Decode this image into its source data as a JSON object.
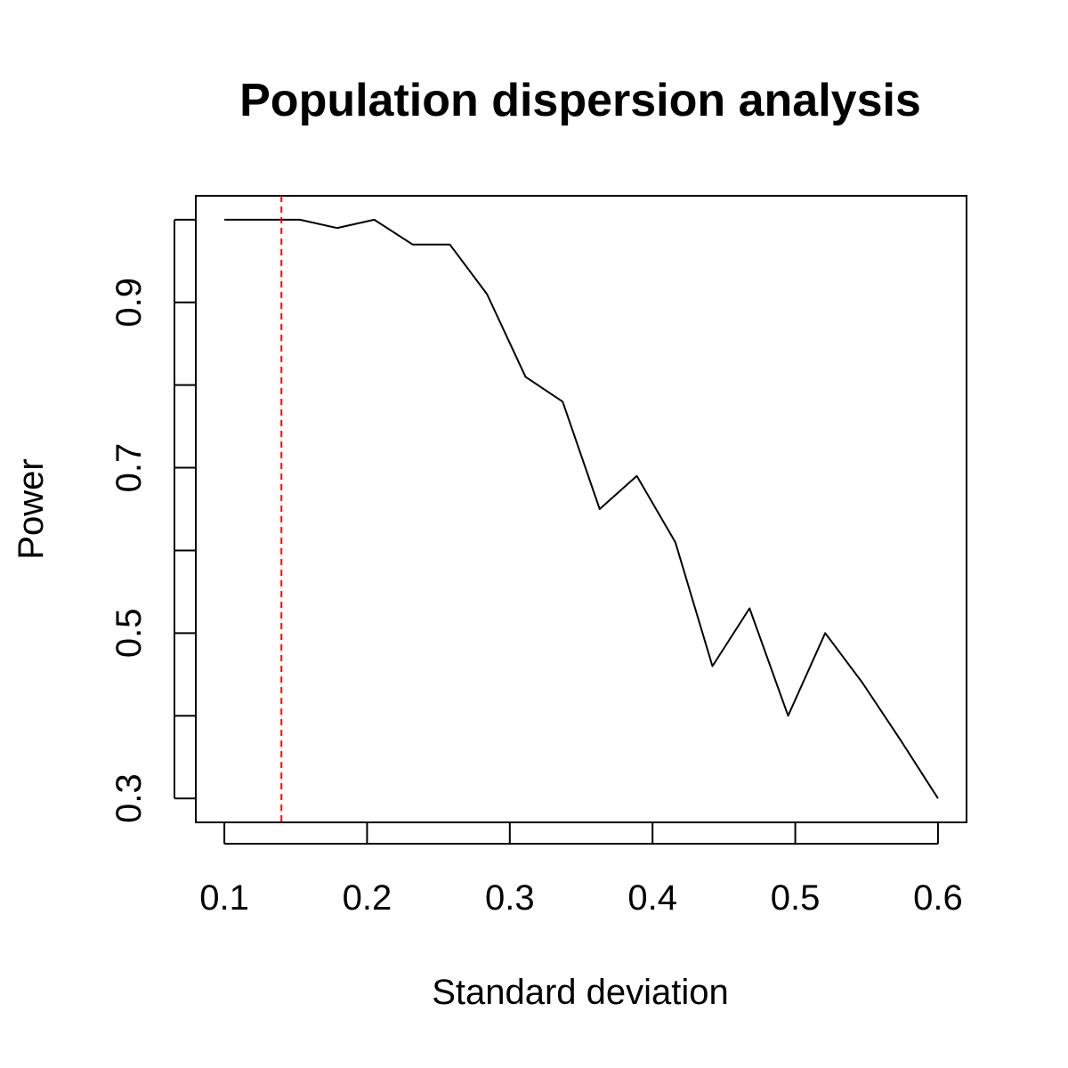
{
  "chart_data": {
    "type": "line",
    "title": "Population dispersion analysis",
    "xlabel": "Standard deviation",
    "ylabel": "Power",
    "xlim": [
      0.08,
      0.62
    ],
    "ylim": [
      0.271,
      1.029
    ],
    "x_ticks": [
      0.1,
      0.2,
      0.3,
      0.4,
      0.5,
      0.6
    ],
    "x_tick_labels": [
      "0.1",
      "0.2",
      "0.3",
      "0.4",
      "0.5",
      "0.6"
    ],
    "y_ticks": [
      0.3,
      0.4,
      0.5,
      0.6,
      0.7,
      0.8,
      0.9,
      1.0
    ],
    "y_tick_labels": [
      "0.3",
      "",
      "0.5",
      "",
      "0.7",
      "",
      "0.9",
      ""
    ],
    "grid": false,
    "series": [
      {
        "color": "#000000",
        "x": [
          0.1,
          0.126,
          0.153,
          0.179,
          0.205,
          0.232,
          0.258,
          0.284,
          0.311,
          0.337,
          0.363,
          0.389,
          0.416,
          0.442,
          0.468,
          0.495,
          0.521,
          0.547,
          0.574,
          0.6
        ],
        "y": [
          1.0,
          1.0,
          1.0,
          0.99,
          1.0,
          0.97,
          0.97,
          0.91,
          0.81,
          0.78,
          0.65,
          0.69,
          0.61,
          0.46,
          0.53,
          0.4,
          0.5,
          0.44,
          0.37,
          0.3
        ]
      }
    ],
    "reference_lines": [
      {
        "orientation": "vertical",
        "x": 0.14,
        "color": "#ff0000",
        "style": "dashed"
      }
    ]
  }
}
